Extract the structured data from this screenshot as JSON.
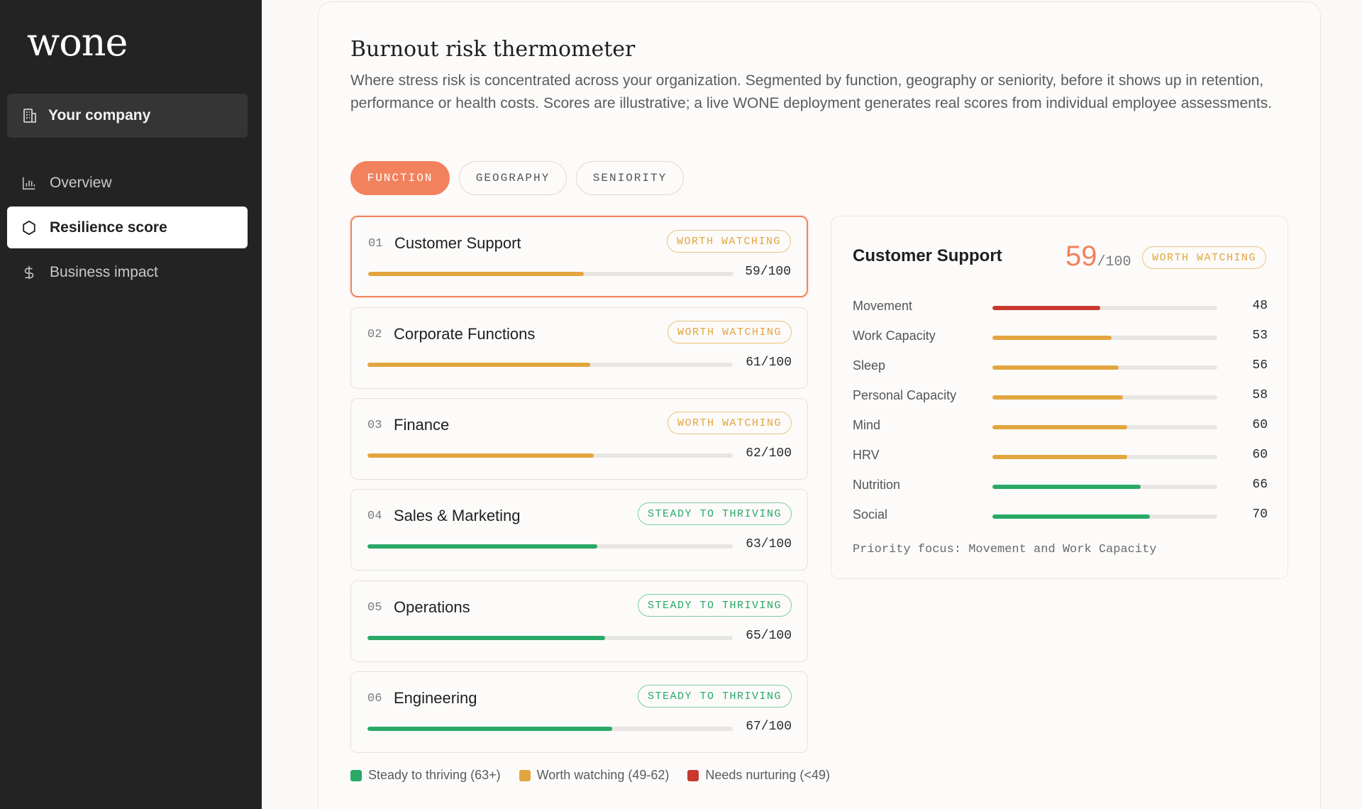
{
  "colors": {
    "accent": "#f2825d",
    "green": "#2aa866",
    "amber": "#e3a53f",
    "red": "#c9382e"
  },
  "app": {
    "logo": "wone"
  },
  "sidebar": {
    "company_label": "Your company",
    "items": [
      {
        "label": "Overview",
        "icon": "bar-chart-icon"
      },
      {
        "label": "Resilience score",
        "icon": "hexagon-icon",
        "active": true
      },
      {
        "label": "Business impact",
        "icon": "dollar-icon"
      }
    ]
  },
  "main": {
    "title": "Burnout risk thermometer",
    "description": "Where stress risk is concentrated across your organization. Segmented by function, geography or seniority, before it shows up in retention, performance or health costs. Scores are illustrative; a live WONE deployment generates real scores from individual employee assessments.",
    "segments": [
      "FUNCTION",
      "GEOGRAPHY",
      "SENIORITY"
    ],
    "active_segment": "FUNCTION"
  },
  "rows": [
    {
      "num": "01",
      "name": "Customer Support",
      "status": "WORTH WATCHING",
      "score": 59,
      "score_text": "59/100"
    },
    {
      "num": "02",
      "name": "Corporate Functions",
      "status": "WORTH WATCHING",
      "score": 61,
      "score_text": "61/100"
    },
    {
      "num": "03",
      "name": "Finance",
      "status": "WORTH WATCHING",
      "score": 62,
      "score_text": "62/100"
    },
    {
      "num": "04",
      "name": "Sales & Marketing",
      "status": "STEADY TO THRIVING",
      "score": 63,
      "score_text": "63/100"
    },
    {
      "num": "05",
      "name": "Operations",
      "status": "STEADY TO THRIVING",
      "score": 65,
      "score_text": "65/100"
    },
    {
      "num": "06",
      "name": "Engineering",
      "status": "STEADY TO THRIVING",
      "score": 67,
      "score_text": "67/100"
    }
  ],
  "detail": {
    "name": "Customer Support",
    "score": "59",
    "max": "/100",
    "status": "WORTH WATCHING",
    "metrics": [
      {
        "label": "Movement",
        "value": 48
      },
      {
        "label": "Work Capacity",
        "value": 53
      },
      {
        "label": "Sleep",
        "value": 56
      },
      {
        "label": "Personal Capacity",
        "value": 58
      },
      {
        "label": "Mind",
        "value": 60
      },
      {
        "label": "HRV",
        "value": 60
      },
      {
        "label": "Nutrition",
        "value": 66
      },
      {
        "label": "Social",
        "value": 70
      }
    ],
    "priority": "Priority focus: Movement and Work Capacity"
  },
  "legend": [
    {
      "label": "Steady to thriving (63+)",
      "color": "#2aa866"
    },
    {
      "label": "Worth watching (49-62)",
      "color": "#e3a53f"
    },
    {
      "label": "Needs nurturing (<49)",
      "color": "#c9382e"
    }
  ]
}
